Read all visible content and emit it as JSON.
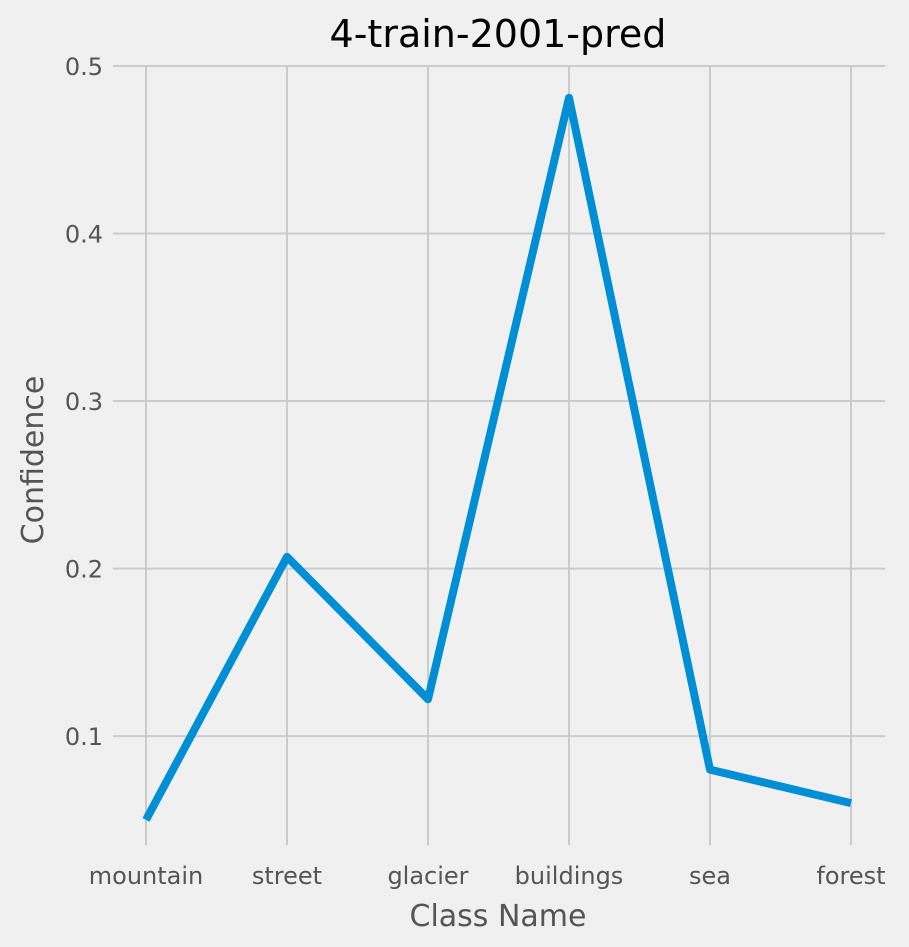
{
  "chart_data": {
    "type": "line",
    "title": "4-train-2001-pred",
    "xlabel": "Class Name",
    "ylabel": "Confidence",
    "categories": [
      "mountain",
      "street",
      "glacier",
      "buildings",
      "sea",
      "forest"
    ],
    "series": [
      {
        "values": [
          0.05,
          0.207,
          0.122,
          0.481,
          0.08,
          0.06
        ]
      }
    ],
    "ylim": [
      0.035,
      0.5
    ],
    "yticks": [
      0.1,
      0.2,
      0.3,
      0.4,
      0.5
    ],
    "ytick_labels": [
      "0.1",
      "0.2",
      "0.3",
      "0.4",
      "0.5"
    ],
    "grid": true,
    "colors": {
      "series": "#008fd5",
      "background": "#f0f0f0",
      "grid": "#cbcbcb"
    }
  }
}
